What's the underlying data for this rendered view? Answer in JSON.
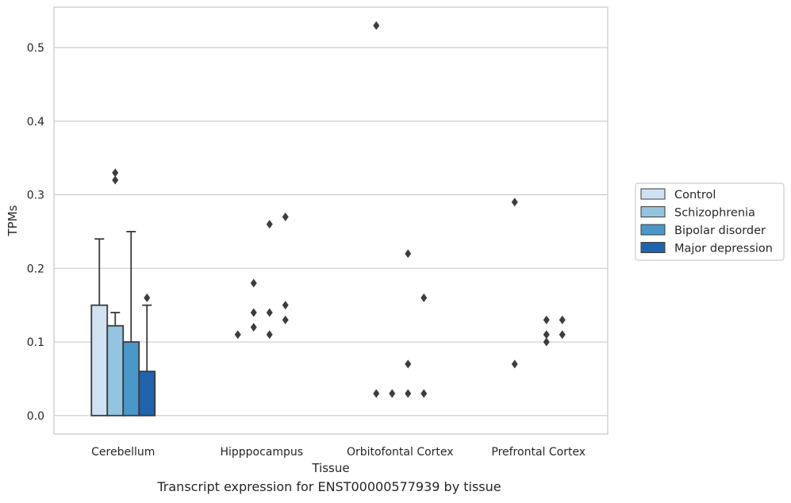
{
  "caption": "Transcript expression for ENST00000577939 by tissue",
  "chart_data": {
    "type": "bar",
    "xlabel": "Tissue",
    "ylabel": "TPMs",
    "ylim": [
      -0.025,
      0.555
    ],
    "yticks": [
      0.0,
      0.1,
      0.2,
      0.3,
      0.4,
      0.5
    ],
    "ytick_labels": [
      "0.0",
      "0.1",
      "0.2",
      "0.3",
      "0.4",
      "0.5"
    ],
    "grid": true,
    "legend_position": "right",
    "categories": [
      "Cerebellum",
      "Hipppocampus",
      "Orbitofontal Cortex",
      "Prefrontal Cortex"
    ],
    "series": [
      {
        "name": "Control",
        "color": "#d0e1f2",
        "values": [
          0.15,
          0.0,
          0.0,
          0.0
        ],
        "whisker_high": [
          0.24,
          null,
          null,
          null
        ],
        "outliers": [
          [],
          [
            0.11
          ],
          [
            0.03
          ],
          [
            0.07,
            0.29
          ]
        ]
      },
      {
        "name": "Schizophrenia",
        "color": "#94c4df",
        "values": [
          0.122,
          0.0,
          0.0,
          0.0
        ],
        "whisker_high": [
          0.14,
          null,
          null,
          null
        ],
        "outliers": [
          [
            0.32,
            0.33
          ],
          [
            0.12,
            0.14,
            0.18
          ],
          [
            0.03
          ],
          []
        ]
      },
      {
        "name": "Bipolar disorder",
        "color": "#4a98c9",
        "values": [
          0.1,
          0.0,
          0.0,
          0.0
        ],
        "whisker_high": [
          0.25,
          null,
          null,
          null
        ],
        "outliers": [
          [],
          [
            0.11,
            0.14,
            0.26
          ],
          [
            0.03,
            0.07,
            0.22
          ],
          [
            0.1,
            0.11,
            0.13
          ]
        ]
      },
      {
        "name": "Major depression",
        "color": "#2163aa",
        "values": [
          0.06,
          0.0,
          0.0,
          0.0
        ],
        "whisker_high": [
          0.15,
          null,
          null,
          null
        ],
        "outliers": [
          [
            0.16
          ],
          [
            0.13,
            0.15,
            0.27
          ],
          [
            0.03,
            0.16
          ],
          [
            0.11,
            0.13
          ]
        ]
      }
    ],
    "extra_outliers": [
      {
        "category": 2,
        "series": 0,
        "value": 0.53
      }
    ]
  }
}
